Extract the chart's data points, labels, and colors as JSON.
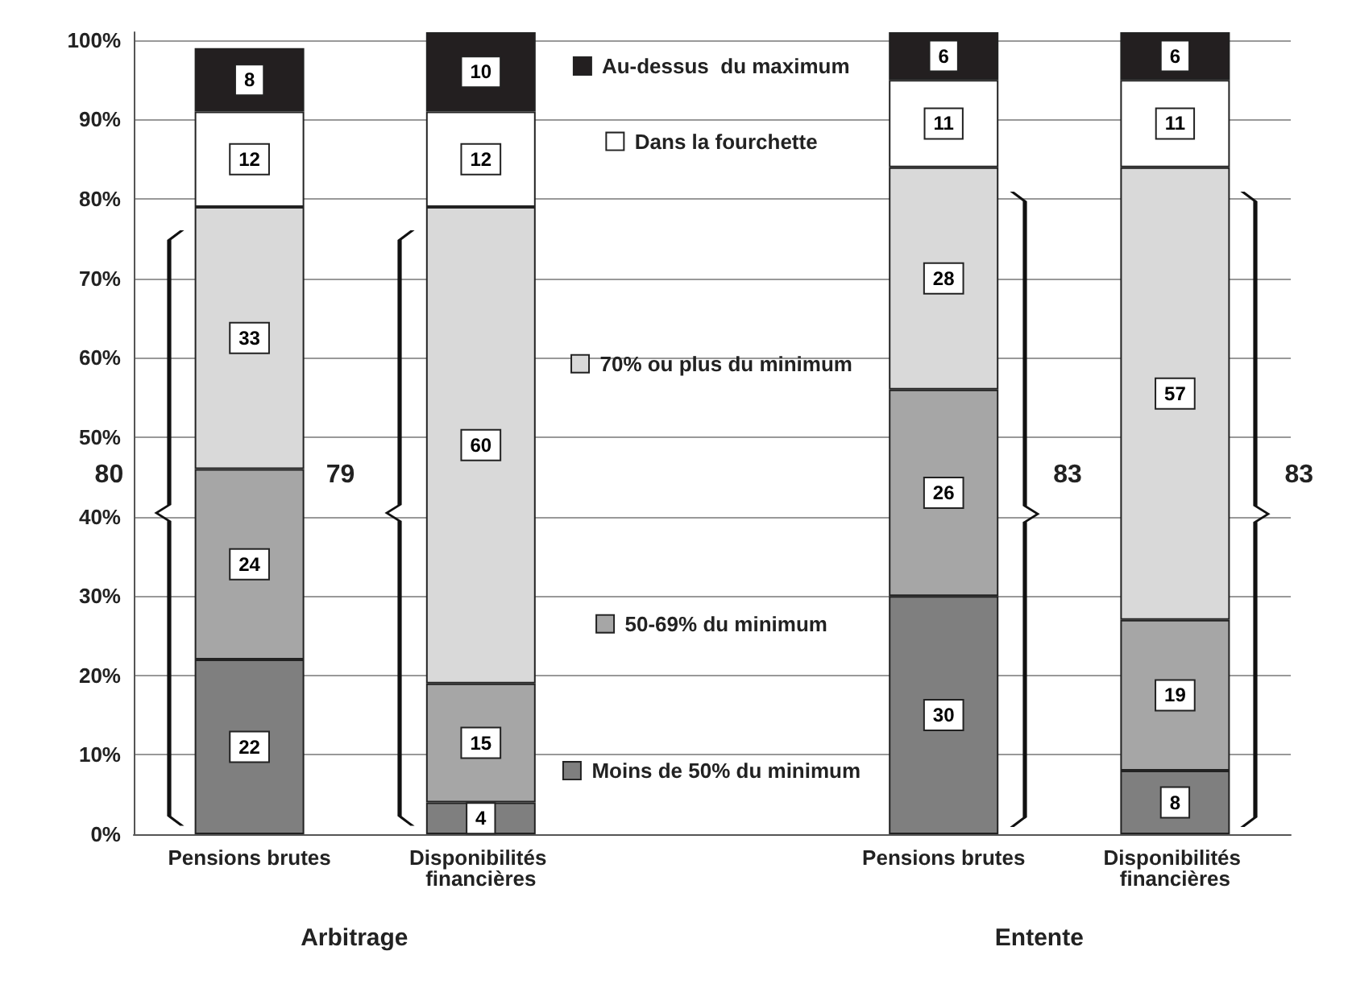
{
  "chart_data": {
    "type": "bar",
    "stacked": true,
    "categories": [
      "Pensions brutes",
      "Disponibilités financières",
      null,
      "Pensions brutes",
      "Disponibilités financières"
    ],
    "series": [
      {
        "name": "Moins de 50% du minimum",
        "color": "#7f7f7f",
        "values": [
          22,
          4,
          null,
          30,
          8
        ]
      },
      {
        "name": "50-69% du minimum",
        "color": "#a6a6a6",
        "values": [
          24,
          15,
          null,
          26,
          19
        ]
      },
      {
        "name": "70% ou plus du minimum",
        "color": "#d9d9d9",
        "values": [
          33,
          60,
          null,
          28,
          57
        ]
      },
      {
        "name": "Dans la fourchette",
        "color": "#ffffff",
        "values": [
          12,
          12,
          null,
          11,
          11
        ]
      },
      {
        "name": "Au-dessus  du maximum",
        "color": "#231f20",
        "values": [
          8,
          10,
          null,
          6,
          6
        ]
      }
    ],
    "ylim": [
      0,
      101
    ],
    "yticks": [
      {
        "value": 0,
        "label": "0%"
      },
      {
        "value": 10,
        "label": "10%"
      },
      {
        "value": 20,
        "label": "20%"
      },
      {
        "value": 30,
        "label": "30%"
      },
      {
        "value": 40,
        "label": "40%"
      },
      {
        "value": 50,
        "label": "50%"
      },
      {
        "value": 60,
        "label": "60%"
      },
      {
        "value": 70,
        "label": "70%"
      },
      {
        "value": 80,
        "label": "80%"
      },
      {
        "value": 90,
        "label": "90%"
      },
      {
        "value": 100,
        "label": "100%"
      }
    ],
    "grid": "y",
    "legend": "top",
    "data_labels": true,
    "annotations": [
      "Arbitrage",
      "Entente",
      "80",
      "79",
      "83",
      "83"
    ]
  }
}
